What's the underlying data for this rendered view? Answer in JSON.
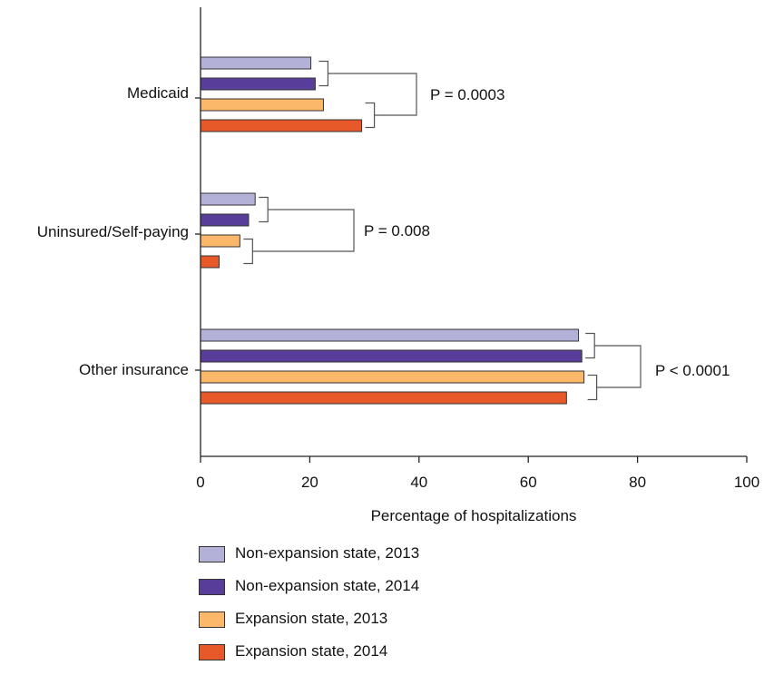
{
  "chart_data": {
    "type": "bar",
    "orientation": "horizontal",
    "categories": [
      "Medicaid",
      "Uninsured/Self-paying",
      "Other insurance"
    ],
    "series": [
      {
        "name": "Non-expansion state, 2013",
        "color": "#b4b1d9",
        "values": [
          20.2,
          10.0,
          69.2
        ]
      },
      {
        "name": "Non-expansion state, 2014",
        "color": "#583d9a",
        "values": [
          21.0,
          8.8,
          69.8
        ]
      },
      {
        "name": "Expansion state, 2013",
        "color": "#fbb86b",
        "values": [
          22.5,
          7.2,
          70.2
        ]
      },
      {
        "name": "Expansion state, 2014",
        "color": "#e8592a",
        "values": [
          29.5,
          3.4,
          67.0
        ]
      }
    ],
    "xlabel": "Percentage of hospitalizations",
    "ylabel": "",
    "xlim": [
      0,
      100
    ],
    "xticks": [
      "0",
      "20",
      "40",
      "60",
      "80",
      "100"
    ],
    "annotations": [
      "P = 0.0003",
      "P = 0.008",
      "P < 0.0001"
    ],
    "legend_position": "bottom",
    "grid": false
  }
}
